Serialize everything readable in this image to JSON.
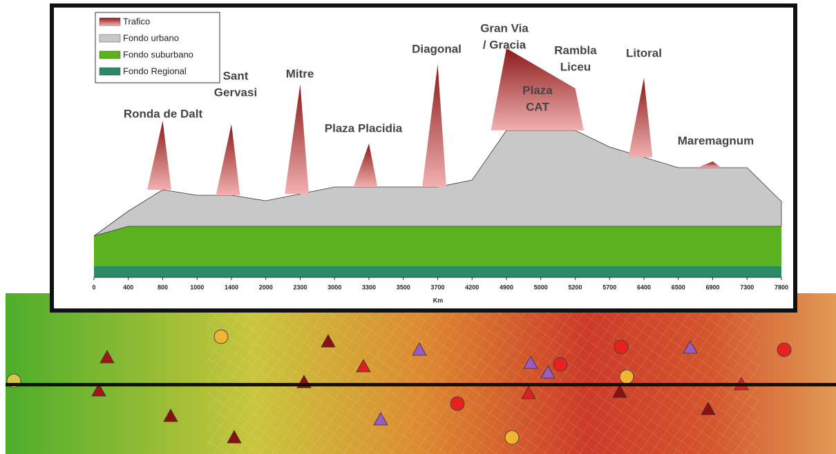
{
  "chart_data": {
    "type": "stacked-area",
    "xlabel": "Km",
    "categories": [
      0,
      400,
      800,
      1000,
      1400,
      2000,
      2300,
      3000,
      3300,
      3500,
      3700,
      4200,
      4900,
      5000,
      5200,
      5700,
      6400,
      6500,
      6900,
      7300,
      7800
    ],
    "ylim": [
      0,
      340
    ],
    "legend": "upper left",
    "series": [
      {
        "name": "Trafico",
        "color": "#8b1a1a",
        "values": [
          null,
          null,
          100,
          null,
          103,
          null,
          159,
          null,
          63,
          null,
          178,
          null,
          119,
          90,
          61,
          null,
          115,
          null,
          9,
          null,
          null
        ]
      },
      {
        "name": "Fondo urbano",
        "color": "#c8c8c8",
        "values": [
          0,
          22,
          53,
          45,
          45,
          37,
          47,
          57,
          57,
          57,
          57,
          67,
          139,
          139,
          139,
          115,
          100,
          85,
          85,
          85,
          36
        ]
      },
      {
        "name": "Fondo suburbano",
        "color": "#5cb21e",
        "values": [
          44,
          58,
          58,
          58,
          58,
          58,
          58,
          58,
          58,
          58,
          58,
          58,
          58,
          58,
          58,
          58,
          58,
          58,
          58,
          58,
          58
        ]
      },
      {
        "name": "Fondo Regional",
        "color": "#2a8a66",
        "values": [
          16,
          16,
          16,
          16,
          16,
          16,
          16,
          16,
          16,
          16,
          16,
          16,
          16,
          16,
          16,
          16,
          16,
          16,
          16,
          16,
          16
        ]
      }
    ],
    "annotations": [
      [
        "Ronda de Dalt"
      ],
      [
        "Sant",
        "Gervasi"
      ],
      [
        "Mitre"
      ],
      [
        "Plaza Placidia"
      ],
      [
        "Diagonal"
      ],
      [
        "Gran Via",
        "/ Gracia"
      ],
      [
        "Plaza",
        "CAT"
      ],
      [
        "Rambla",
        "Liceu"
      ],
      [
        "Litoral"
      ],
      [
        "Maremagnum"
      ]
    ]
  }
}
